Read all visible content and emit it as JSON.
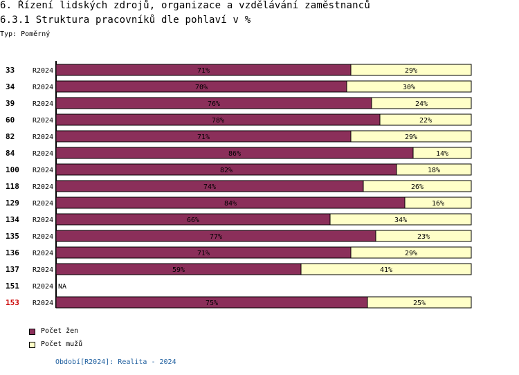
{
  "header": {
    "title": "6. Řízení lidských zdrojů, organizace a vzdělávání zaměstnanců",
    "subtitle": "6.3.1 Struktura pracovníků dle pohlaví v %",
    "type_label": "Typ: Poměrný"
  },
  "chart_data": {
    "type": "bar",
    "orientation": "horizontal",
    "stacked": true,
    "title": "6.3.1 Struktura pracovníků dle pohlaví v %",
    "categories": [
      "33",
      "34",
      "39",
      "60",
      "82",
      "84",
      "100",
      "118",
      "129",
      "134",
      "135",
      "136",
      "137",
      "151",
      "153"
    ],
    "period_labels": [
      "R2024",
      "R2024",
      "R2024",
      "R2024",
      "R2024",
      "R2024",
      "R2024",
      "R2024",
      "R2024",
      "R2024",
      "R2024",
      "R2024",
      "R2024",
      "R2024",
      "R2024"
    ],
    "highlight_category": "153",
    "na_label": "NA",
    "series": [
      {
        "name": "Počet žen",
        "color": "#8b2f5a",
        "values": [
          71,
          70,
          76,
          78,
          71,
          86,
          82,
          74,
          84,
          66,
          77,
          71,
          59,
          null,
          75
        ]
      },
      {
        "name": "Počet mužů",
        "color": "#ffffc8",
        "values": [
          29,
          30,
          24,
          22,
          29,
          14,
          18,
          26,
          16,
          34,
          23,
          29,
          41,
          null,
          25
        ]
      }
    ],
    "xlim": [
      0,
      100
    ],
    "unit": "%"
  },
  "legend": {
    "items": [
      {
        "label": "Počet žen",
        "color": "#8b2f5a"
      },
      {
        "label": "Počet mužů",
        "color": "#ffffc8"
      }
    ]
  },
  "footer": {
    "text": "Období[R2024]: Realita - 2024"
  }
}
